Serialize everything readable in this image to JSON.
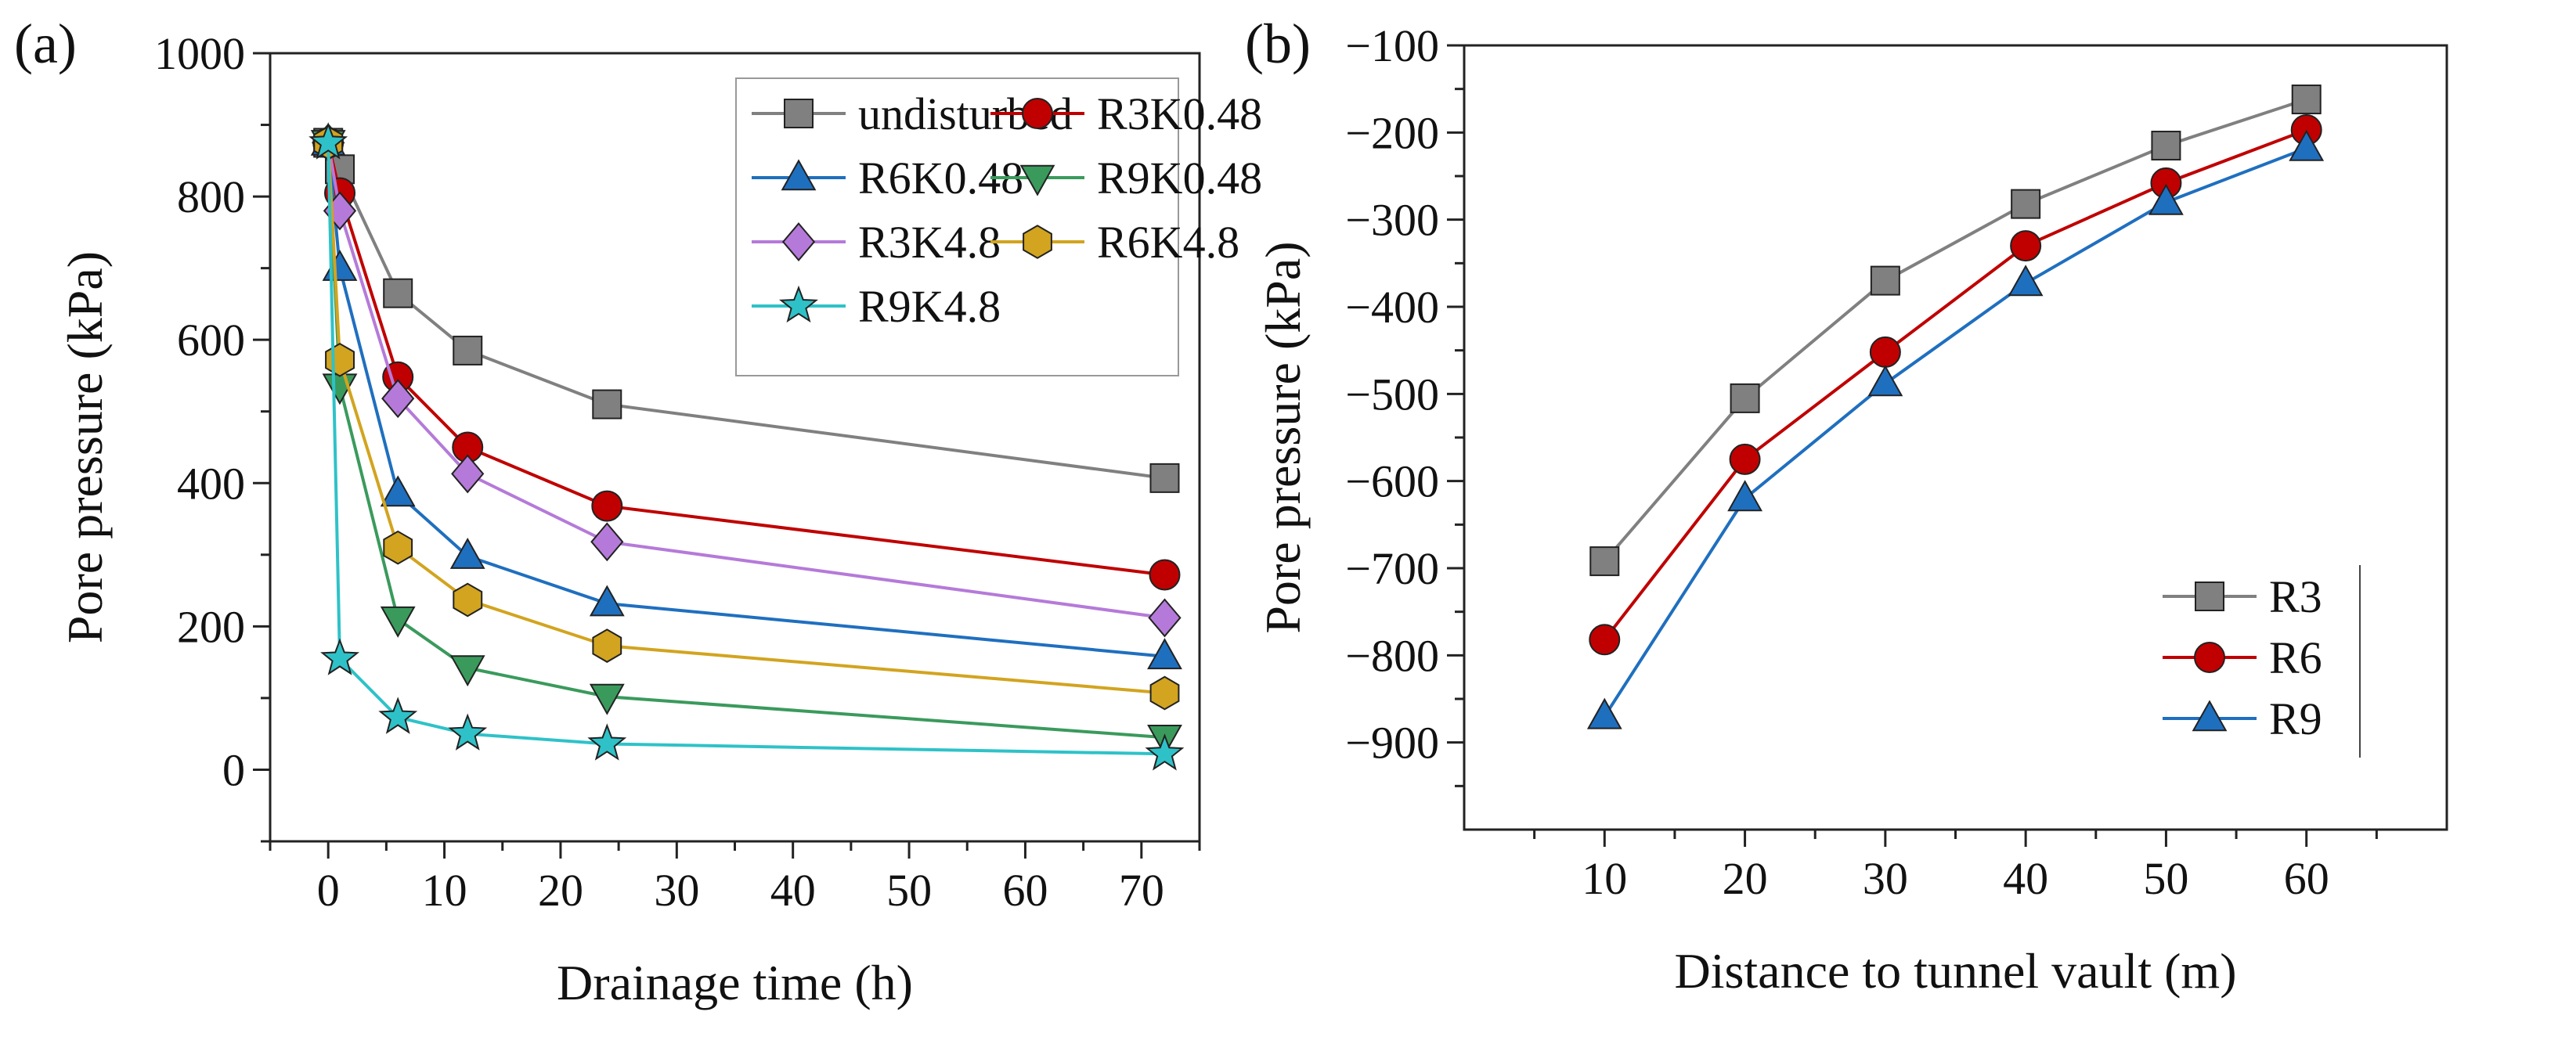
{
  "colors": {
    "undisturbed": "#808080",
    "R3K0.48": "#c00000",
    "R6K0.48": "#1f6fbf",
    "R9K0.48": "#3a9a5c",
    "R3K4.8": "#b57ad9",
    "R6K4.8": "#d2a41f",
    "R9K4.8": "#2ec2c8",
    "R3": "#808080",
    "R6": "#c00000",
    "R9": "#1f6fbf"
  },
  "chart_data": [
    {
      "panel_label": "(a)",
      "type": "line",
      "title": "",
      "xlabel": "Drainage time (h)",
      "ylabel": "Pore pressure (kPa)",
      "xlim": [
        -5,
        75
      ],
      "ylim": [
        -100,
        1000
      ],
      "xticks": [
        0,
        10,
        20,
        30,
        40,
        50,
        60,
        70
      ],
      "yticks": [
        0,
        200,
        400,
        600,
        800,
        1000
      ],
      "legend_position": "top-right",
      "series": [
        {
          "name": "undisturbed",
          "marker": "square",
          "x": [
            0,
            1,
            6,
            12,
            24,
            72
          ],
          "y": [
            875,
            838,
            665,
            585,
            510,
            407
          ]
        },
        {
          "name": "R3K0.48",
          "marker": "circle",
          "x": [
            0,
            1,
            6,
            12,
            24,
            72
          ],
          "y": [
            875,
            805,
            548,
            450,
            368,
            272
          ]
        },
        {
          "name": "R6K0.48",
          "marker": "triangle-up",
          "x": [
            0,
            1,
            6,
            12,
            24,
            72
          ],
          "y": [
            875,
            700,
            385,
            298,
            232,
            158
          ]
        },
        {
          "name": "R9K0.48",
          "marker": "triangle-down",
          "x": [
            0,
            1,
            6,
            12,
            24,
            72
          ],
          "y": [
            875,
            535,
            210,
            142,
            102,
            45
          ]
        },
        {
          "name": "R3K4.8",
          "marker": "diamond",
          "x": [
            0,
            1,
            6,
            12,
            24,
            72
          ],
          "y": [
            875,
            780,
            518,
            413,
            318,
            212
          ]
        },
        {
          "name": "R6K4.8",
          "marker": "hexagon",
          "x": [
            0,
            1,
            6,
            12,
            24,
            72
          ],
          "y": [
            875,
            572,
            310,
            237,
            173,
            107
          ]
        },
        {
          "name": "R9K4.8",
          "marker": "star",
          "x": [
            0,
            1,
            6,
            12,
            24,
            72
          ],
          "y": [
            875,
            155,
            73,
            50,
            36,
            22
          ]
        }
      ]
    },
    {
      "panel_label": "(b)",
      "type": "line",
      "title": "",
      "xlabel": "Distance to tunnel vault (m)",
      "ylabel": "Pore pressure (kPa)",
      "xlim": [
        0,
        70
      ],
      "ylim": [
        -1000,
        -100
      ],
      "xticks": [
        10,
        20,
        30,
        40,
        50,
        60
      ],
      "yticks": [
        -900,
        -800,
        -700,
        -600,
        -500,
        -400,
        -300,
        -200,
        -100
      ],
      "legend_position": "bottom-right",
      "series": [
        {
          "name": "R3",
          "marker": "square",
          "x": [
            10,
            20,
            30,
            40,
            50,
            60
          ],
          "y": [
            -692,
            -505,
            -370,
            -282,
            -215,
            -162
          ]
        },
        {
          "name": "R6",
          "marker": "circle",
          "x": [
            10,
            20,
            30,
            40,
            50,
            60
          ],
          "y": [
            -782,
            -575,
            -452,
            -330,
            -258,
            -197
          ]
        },
        {
          "name": "R9",
          "marker": "triangle-up",
          "x": [
            10,
            20,
            30,
            40,
            50,
            60
          ],
          "y": [
            -870,
            -620,
            -488,
            -373,
            -280,
            -218
          ]
        }
      ]
    }
  ]
}
